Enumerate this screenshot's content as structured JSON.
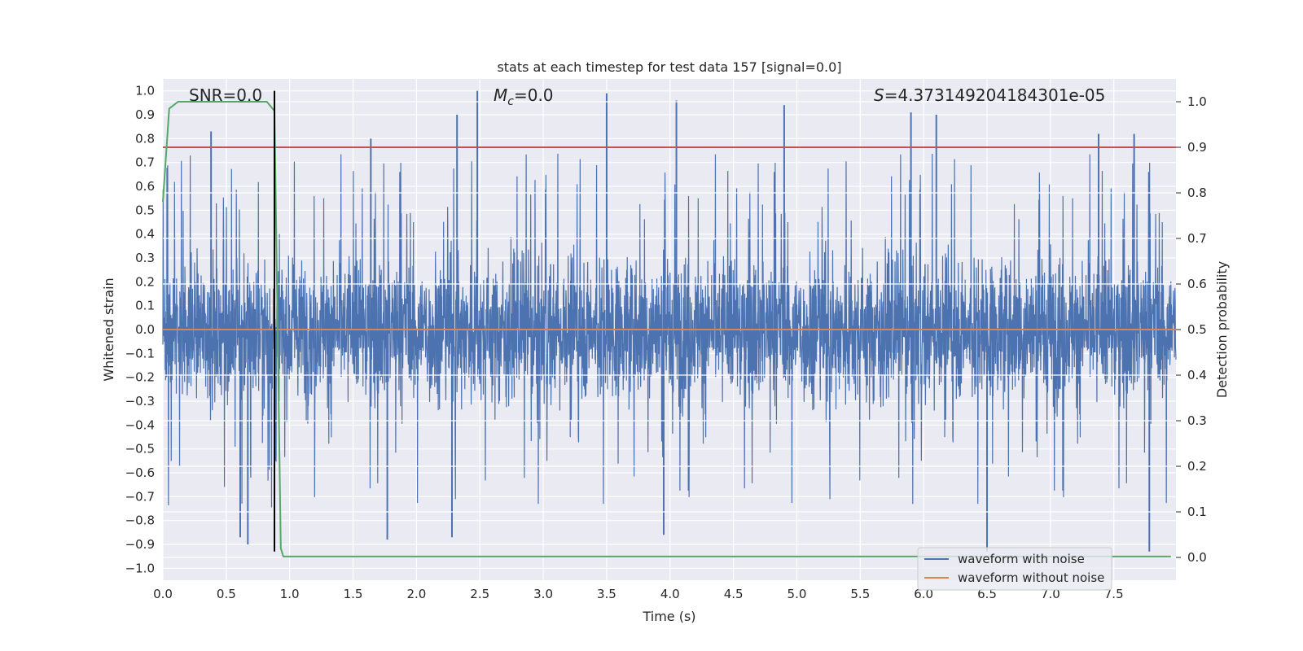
{
  "chart_data": {
    "type": "line",
    "title": "stats at each timestep for test data 157 [signal=0.0]",
    "xlabel": "Time (s)",
    "ylabel": "Whitened strain",
    "y2label": "Detection probability",
    "xlim": [
      0.0,
      7.99
    ],
    "ylim": [
      -1.05,
      1.05
    ],
    "y2lim": [
      -0.05,
      1.05
    ],
    "x_ticks": [
      "0.0",
      "0.5",
      "1.0",
      "1.5",
      "2.0",
      "2.5",
      "3.0",
      "3.5",
      "4.0",
      "4.5",
      "5.0",
      "5.5",
      "6.0",
      "6.5",
      "7.0",
      "7.5"
    ],
    "y_ticks": [
      "1.0",
      "0.9",
      "0.8",
      "0.7",
      "0.6",
      "0.5",
      "0.4",
      "0.3",
      "0.2",
      "0.1",
      "0.0",
      "−0.1",
      "−0.2",
      "−0.3",
      "−0.4",
      "−0.5",
      "−0.6",
      "−0.7",
      "−0.8",
      "−0.9",
      "−1.0"
    ],
    "y2_ticks": [
      "1.0",
      "0.9",
      "0.8",
      "0.7",
      "0.6",
      "0.5",
      "0.4",
      "0.3",
      "0.2",
      "0.1",
      "0.0"
    ],
    "annotations": {
      "snr": "SNR=0.0",
      "mc_symbol": "M",
      "mc_sub": "c",
      "mc_value": "=0.0",
      "s_symbol": "S",
      "s_value": "=4.373149204184301e-05"
    },
    "legend": {
      "placement": "lower-right",
      "entries": [
        {
          "label": "waveform with noise",
          "color": "#4c72b0"
        },
        {
          "label": "waveform without noise",
          "color": "#dd8452"
        }
      ]
    },
    "threshold_line": {
      "y2": 0.9,
      "color": "#c44e52"
    },
    "marker_line": {
      "x": 0.88,
      "ymin": -0.93,
      "ymax": 1.0,
      "color": "#000000"
    },
    "noisy_waveform": {
      "color": "#4c72b0",
      "x_start": 0.0,
      "x_end": 7.99,
      "typical_amplitude": 0.38,
      "notable_peaks": [
        {
          "x": 0.38,
          "y": 0.83
        },
        {
          "x": 0.61,
          "y": -0.87
        },
        {
          "x": 0.67,
          "y": -0.9
        },
        {
          "x": 1.64,
          "y": 0.8
        },
        {
          "x": 1.77,
          "y": -0.88
        },
        {
          "x": 2.32,
          "y": 0.9
        },
        {
          "x": 2.48,
          "y": 1.0
        },
        {
          "x": 2.28,
          "y": -0.87
        },
        {
          "x": 3.5,
          "y": 0.99
        },
        {
          "x": 3.95,
          "y": -0.86
        },
        {
          "x": 4.05,
          "y": 0.96
        },
        {
          "x": 4.9,
          "y": 0.94
        },
        {
          "x": 5.9,
          "y": 0.91
        },
        {
          "x": 6.1,
          "y": 0.9
        },
        {
          "x": 6.5,
          "y": -0.93
        },
        {
          "x": 7.38,
          "y": 0.82
        },
        {
          "x": 7.66,
          "y": 0.82
        },
        {
          "x": 7.78,
          "y": -0.93
        }
      ]
    },
    "clean_waveform": {
      "color": "#dd8452",
      "value": 0.0
    },
    "detection_probability": {
      "color": "#55a868",
      "points": [
        [
          0.0,
          0.78
        ],
        [
          0.05,
          0.985
        ],
        [
          0.12,
          1.0
        ],
        [
          0.4,
          1.0
        ],
        [
          0.82,
          1.0
        ],
        [
          0.88,
          0.98
        ],
        [
          0.9,
          0.6
        ],
        [
          0.93,
          0.02
        ],
        [
          0.95,
          0.002
        ],
        [
          7.95,
          0.002
        ]
      ]
    }
  }
}
